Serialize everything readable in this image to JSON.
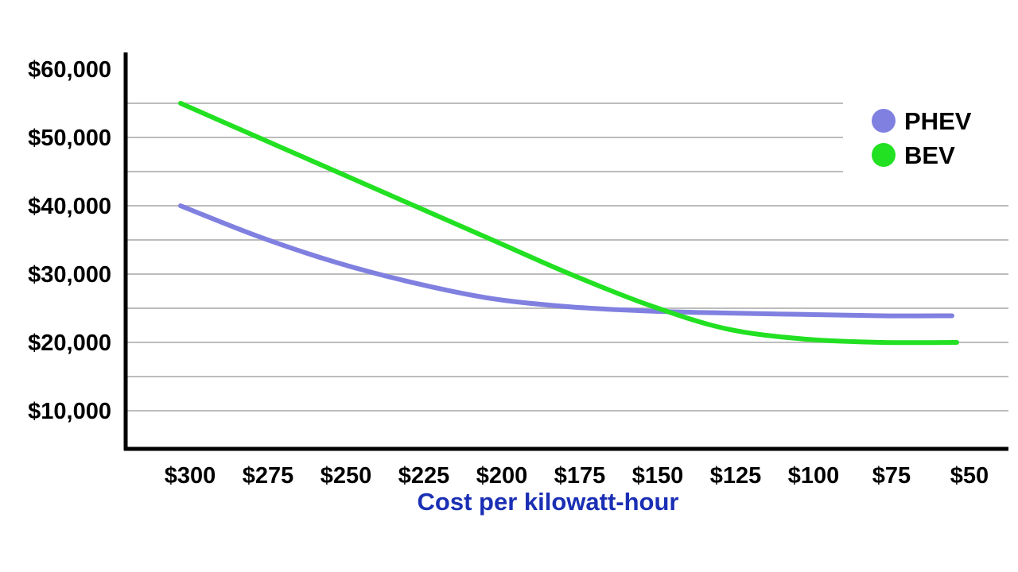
{
  "chart_data": {
    "type": "line",
    "title": "",
    "xlabel": "Cost per kilowatt-hour",
    "ylabel": "",
    "categories": [
      "$300",
      "$275",
      "$250",
      "$225",
      "$200",
      "$175",
      "$150",
      "$125",
      "$100",
      "$75",
      "$50"
    ],
    "x": [
      300,
      275,
      250,
      225,
      200,
      175,
      150,
      125,
      100,
      75,
      50
    ],
    "y_ticks": [
      "$10,000",
      "$20,000",
      "$30,000",
      "$40,000",
      "$50,000",
      "$60,000"
    ],
    "y_tick_values": [
      10000,
      20000,
      30000,
      40000,
      50000,
      60000
    ],
    "ylim": [
      5000,
      65000
    ],
    "grid": true,
    "legend_position": "top-right",
    "series": [
      {
        "name": "PHEV",
        "color": "#8080e0",
        "values": [
          40000,
          35500,
          31700,
          28700,
          26400,
          25200,
          24600,
          24300,
          24100,
          23900,
          23900
        ]
      },
      {
        "name": "BEV",
        "color": "#22e022",
        "values": [
          55000,
          50000,
          45000,
          40000,
          35000,
          30000,
          25500,
          22000,
          20500,
          20000,
          20000
        ]
      }
    ]
  }
}
